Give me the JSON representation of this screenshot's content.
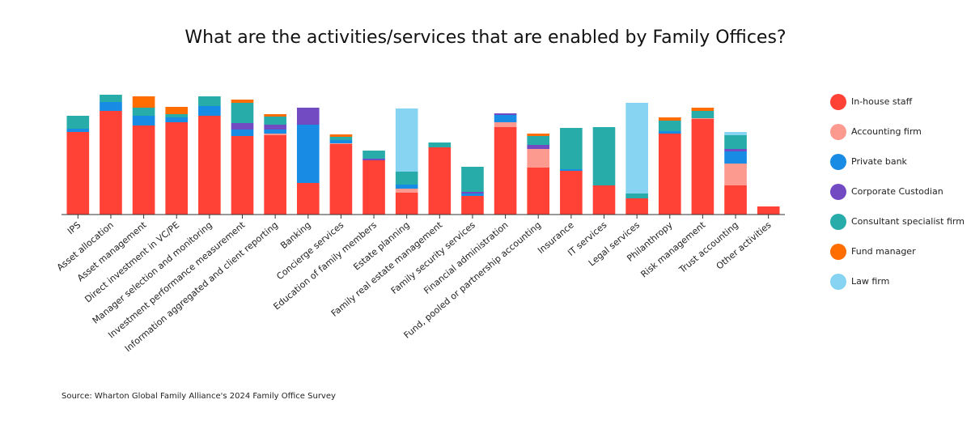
{
  "chart_data": {
    "type": "bar",
    "stacked": true,
    "title": "What are the activities/services that are enabled by Family Offices?",
    "xlabel": "",
    "ylabel": "",
    "ylim": [
      0,
      150
    ],
    "grid": false,
    "legend_position": "right",
    "categories": [
      "IPS",
      "Asset allocation",
      "Asset management",
      "Direct investment in VC/PE",
      "Manager selection and monitoring",
      "Investment performance measurement",
      "Information aggregated and client reporting",
      "Banking",
      "Concierge services",
      "Education of family members",
      "Estate planning",
      "Family real estate management",
      "Family security services",
      "Financial administration",
      "Fund, pooled or partnership accounting",
      "Insurance",
      "IT services",
      "Legal services",
      "Philanthropy",
      "Risk management",
      "Trust accounting",
      "Other activities"
    ],
    "series": [
      {
        "name": "In-house staff",
        "color": "#ff4136",
        "values": [
          102,
          128,
          110,
          114,
          122,
          97,
          98,
          39,
          87,
          67,
          27,
          83,
          23,
          108,
          58,
          54,
          36,
          20,
          100,
          118,
          36,
          10
        ]
      },
      {
        "name": "Accounting firm",
        "color": "#fc9a90",
        "values": [
          0,
          0,
          0,
          0,
          0,
          0,
          2,
          0,
          1,
          0,
          5,
          0,
          0,
          6,
          23,
          0,
          0,
          0,
          0,
          1,
          27,
          0
        ]
      },
      {
        "name": "Private bank",
        "color": "#188ce5",
        "values": [
          4,
          11,
          12,
          6,
          12,
          8,
          5,
          72,
          4,
          0,
          5,
          0,
          3,
          9,
          0,
          2,
          0,
          0,
          3,
          0,
          15,
          0
        ]
      },
      {
        "name": "Corporate Custodian",
        "color": "#724bc3",
        "values": [
          0,
          0,
          0,
          0,
          0,
          8,
          6,
          21,
          0,
          2,
          0,
          0,
          2,
          2,
          5,
          0,
          0,
          0,
          0,
          0,
          3,
          0
        ]
      },
      {
        "name": "Consultant specialist firm",
        "color": "#27acaa",
        "values": [
          16,
          9,
          10,
          4,
          12,
          25,
          10,
          0,
          4,
          10,
          16,
          6,
          31,
          0,
          11,
          51,
          72,
          6,
          13,
          9,
          17,
          0
        ]
      },
      {
        "name": "Fund manager",
        "color": "#ff6d00",
        "values": [
          0,
          0,
          14,
          9,
          0,
          4,
          3,
          0,
          3,
          0,
          0,
          0,
          0,
          0,
          3,
          0,
          0,
          0,
          4,
          4,
          0,
          0
        ]
      },
      {
        "name": "Law firm",
        "color": "#87d3f2",
        "values": [
          0,
          0,
          0,
          0,
          0,
          0,
          0,
          0,
          0,
          0,
          78,
          0,
          0,
          0,
          0,
          0,
          0,
          112,
          0,
          0,
          4,
          0
        ]
      }
    ]
  },
  "source": "Source: Wharton Global Family Alliance's 2024 Family Office Survey"
}
